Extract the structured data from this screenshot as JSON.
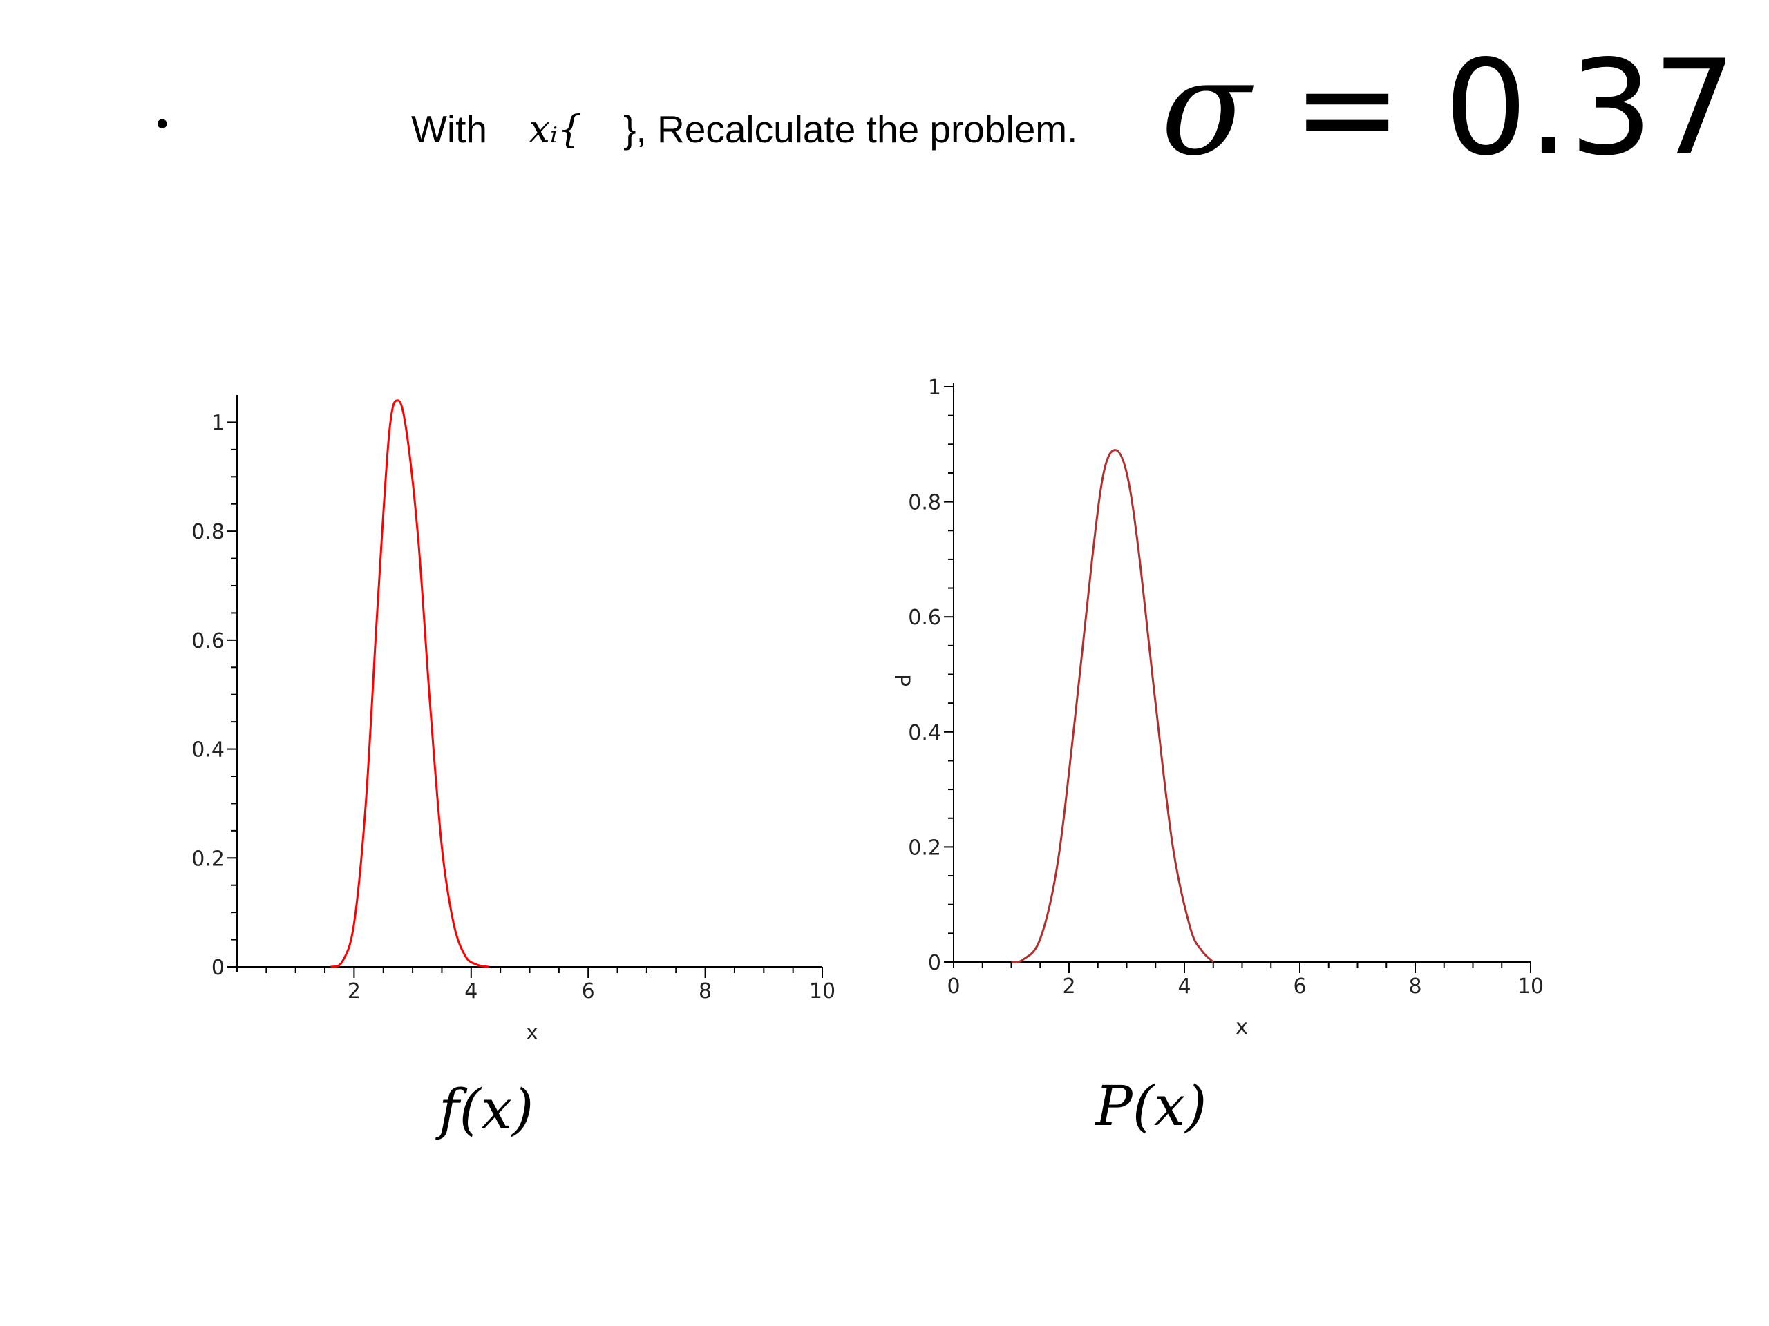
{
  "slide": {
    "bullet": "•",
    "heading_prefix": "With",
    "heading_var": "𝑥ᵢ{",
    "heading_suffix": "}, Recalculate the problem.",
    "sigma_symbol": "σ",
    "sigma_rest": " = 0.37"
  },
  "captions": {
    "left": "f(x)",
    "right": "P(x)"
  },
  "chart_data": [
    {
      "type": "line",
      "title": "",
      "xlabel": "x",
      "ylabel": "",
      "xlim": [
        0,
        10
      ],
      "ylim": [
        0,
        1.05
      ],
      "xticks": [
        "2",
        "4",
        "6",
        "8",
        "10"
      ],
      "yticks": [
        "0",
        "0.2",
        "0.4",
        "0.6",
        "0.8",
        "1"
      ],
      "grid": false,
      "series": [
        {
          "color": "#ff0000",
          "x": [
            1.6,
            1.8,
            2.0,
            2.2,
            2.4,
            2.6,
            2.75,
            2.9,
            3.1,
            3.3,
            3.5,
            3.7,
            3.9,
            4.1,
            4.3
          ],
          "y": [
            0,
            0.01,
            0.08,
            0.3,
            0.66,
            0.98,
            1.04,
            0.98,
            0.78,
            0.48,
            0.22,
            0.08,
            0.02,
            0.004,
            0
          ]
        }
      ]
    },
    {
      "type": "line",
      "title": "",
      "xlabel": "x",
      "ylabel": "P",
      "xlim": [
        0,
        10
      ],
      "ylim": [
        0,
        1
      ],
      "xticks": [
        "0",
        "2",
        "4",
        "6",
        "8",
        "10"
      ],
      "yticks": [
        "0",
        "0.2",
        "0.4",
        "0.6",
        "0.8",
        "1"
      ],
      "grid": false,
      "series": [
        {
          "color": "#b03030",
          "x": [
            1.0,
            1.2,
            1.5,
            1.8,
            2.1,
            2.4,
            2.6,
            2.8,
            3.0,
            3.2,
            3.5,
            3.8,
            4.1,
            4.3,
            4.5
          ],
          "y": [
            0,
            0.004,
            0.04,
            0.17,
            0.42,
            0.7,
            0.85,
            0.89,
            0.85,
            0.72,
            0.45,
            0.2,
            0.06,
            0.02,
            0
          ]
        }
      ]
    }
  ]
}
